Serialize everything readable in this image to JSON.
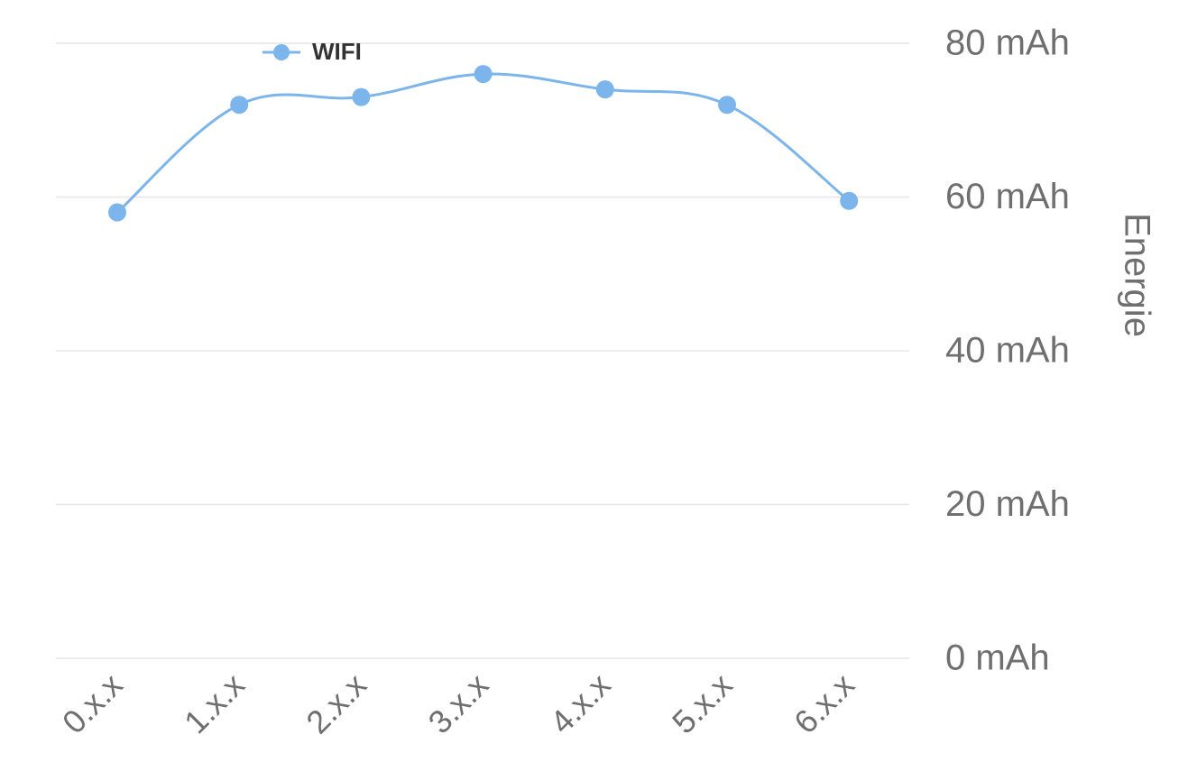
{
  "chart_data": {
    "type": "line",
    "categories": [
      "0.x.x",
      "1.x.x",
      "2.x.x",
      "3.x.x",
      "4.x.x",
      "5.x.x",
      "6.x.x"
    ],
    "series": [
      {
        "name": "WIFI",
        "values": [
          58,
          72,
          73,
          76,
          74,
          72,
          59.5
        ],
        "color": "#7cb5ec"
      }
    ],
    "ylabel": "Energie",
    "ylim": [
      0,
      80
    ],
    "yticks": [
      0,
      20,
      40,
      60,
      80
    ],
    "ytick_labels": [
      "0 mAh",
      "20 mAh",
      "40 mAh",
      "60 mAh",
      "80 mAh"
    ],
    "y_axis_side": "right",
    "legend_position": "top-left",
    "grid": true,
    "smooth": true
  }
}
